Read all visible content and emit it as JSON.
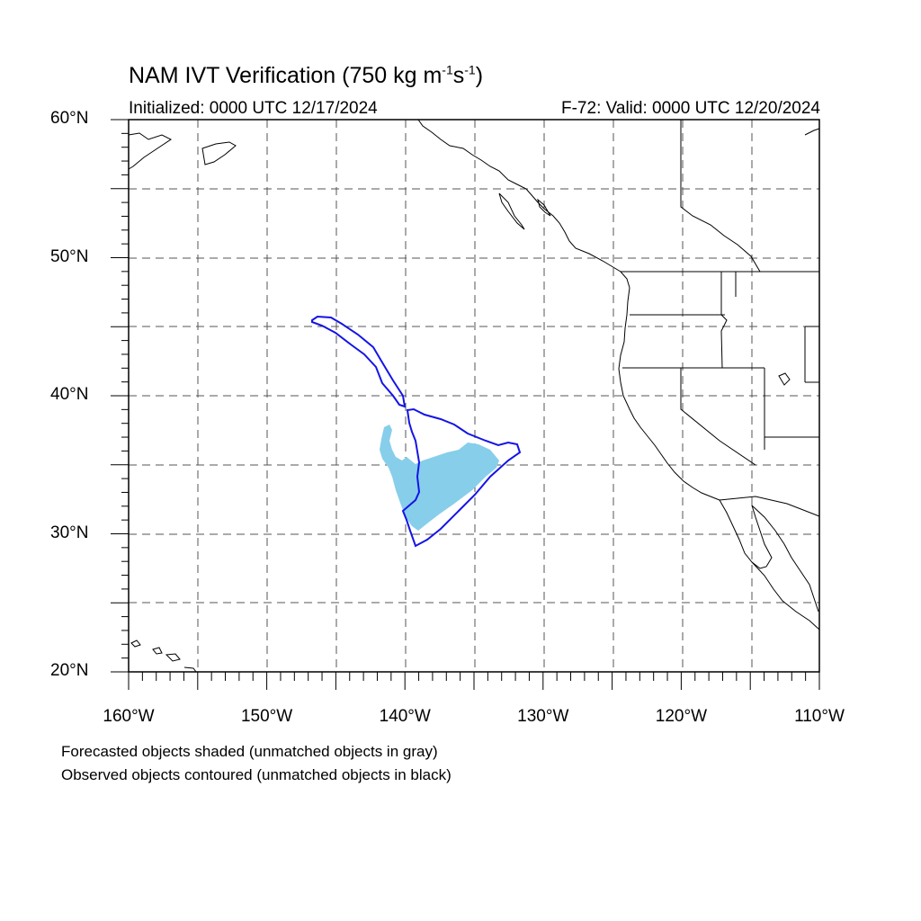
{
  "header": {
    "title_main": "NAM IVT Verification (750 kg m",
    "title_sup1": "-1",
    "title_mid": "s",
    "title_sup2": "-1",
    "title_end": ")",
    "initialized": "Initialized: 0000 UTC 12/17/2024",
    "valid": "F-72: Valid: 0000 UTC 12/20/2024"
  },
  "axes": {
    "lat_labels": [
      {
        "lat": 60,
        "text": "60°N"
      },
      {
        "lat": 50,
        "text": "50°N"
      },
      {
        "lat": 40,
        "text": "40°N"
      },
      {
        "lat": 30,
        "text": "30°N"
      },
      {
        "lat": 20,
        "text": "20°N"
      }
    ],
    "lon_labels": [
      {
        "lon": -160,
        "text": "160°W"
      },
      {
        "lon": -150,
        "text": "150°W"
      },
      {
        "lon": -140,
        "text": "140°W"
      },
      {
        "lon": -130,
        "text": "130°W"
      },
      {
        "lon": -120,
        "text": "120°W"
      },
      {
        "lon": -110,
        "text": "110°W"
      }
    ],
    "lat_range": [
      20,
      60
    ],
    "lon_range": [
      -160,
      -110
    ],
    "grid_spacing_deg": 5,
    "grid_style": "dashed"
  },
  "legend": {
    "line1": "Forecasted objects shaded (unmatched objects in gray)",
    "line2": "Observed objects contoured (unmatched objects in black)"
  },
  "colors": {
    "forecast_fill": "#87ceeb",
    "observed_contour": "#1414e6",
    "coastline": "#000000",
    "grid": "#555555"
  }
}
